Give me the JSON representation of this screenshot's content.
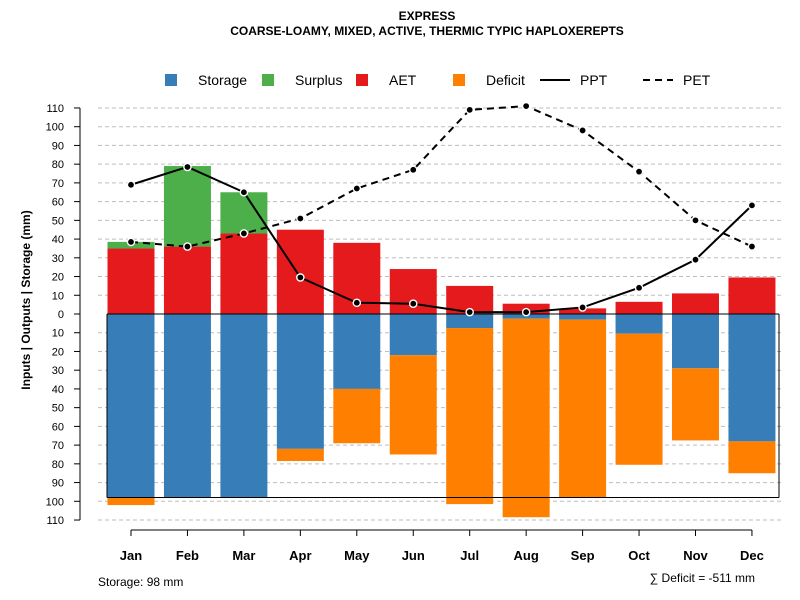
{
  "chart_data": {
    "type": "bar",
    "title": "EXPRESS",
    "subtitle": "COARSE-LOAMY, MIXED, ACTIVE, THERMIC TYPIC HAPLOXEREPTS",
    "ylabel": "Inputs | Outputs | Storage    (mm)",
    "ylim": [
      -110,
      110
    ],
    "yticks": [
      110,
      100,
      90,
      80,
      70,
      60,
      50,
      40,
      30,
      20,
      10,
      0,
      -10,
      -20,
      -30,
      -40,
      -50,
      -60,
      -70,
      -80,
      -90,
      -100,
      -110
    ],
    "ytick_labels": [
      "110",
      "100",
      "90",
      "80",
      "70",
      "60",
      "50",
      "40",
      "30",
      "20",
      "10",
      "0",
      "10",
      "20",
      "30",
      "40",
      "50",
      "60",
      "70",
      "80",
      "90",
      "100",
      "110"
    ],
    "categories": [
      "Jan",
      "Feb",
      "Mar",
      "Apr",
      "May",
      "Jun",
      "Jul",
      "Aug",
      "Sep",
      "Oct",
      "Nov",
      "Dec"
    ],
    "capacity": 98,
    "legend": [
      {
        "name": "Storage",
        "kind": "square",
        "color": "#377EB8"
      },
      {
        "name": "Surplus",
        "kind": "square",
        "color": "#4DAF4A"
      },
      {
        "name": "AET",
        "kind": "square",
        "color": "#E41A1C"
      },
      {
        "name": "Deficit",
        "kind": "square",
        "color": "#FF7F00"
      },
      {
        "name": "PPT",
        "kind": "solid",
        "color": "#000000"
      },
      {
        "name": "PET",
        "kind": "dashed",
        "color": "#000000"
      }
    ],
    "series": [
      {
        "name": "AET",
        "values": [
          35,
          36,
          43,
          45,
          38,
          24,
          15,
          5.5,
          3,
          6.5,
          11,
          19.5
        ]
      },
      {
        "name": "Surplus",
        "values": [
          3.5,
          43,
          22,
          0,
          0,
          0,
          0,
          0,
          0,
          0,
          0,
          0
        ]
      },
      {
        "name": "Storage",
        "values": [
          98,
          98,
          98,
          72,
          40,
          22,
          7.5,
          2.5,
          3,
          10.5,
          29,
          68
        ]
      },
      {
        "name": "Deficit",
        "values": [
          4,
          0,
          0,
          6.5,
          29,
          53,
          94,
          106,
          95,
          70,
          38.5,
          17
        ]
      },
      {
        "name": "PPT",
        "values": [
          69,
          78.5,
          65,
          19.5,
          6,
          5.5,
          1,
          1,
          3.5,
          14,
          29,
          58
        ]
      },
      {
        "name": "PET",
        "values": [
          38.5,
          36,
          43,
          51,
          67,
          77,
          109,
          111,
          98,
          76,
          50,
          36
        ]
      }
    ],
    "footer_left": "Storage: 98 mm",
    "footer_right": "∑ Deficit = -511 mm"
  }
}
